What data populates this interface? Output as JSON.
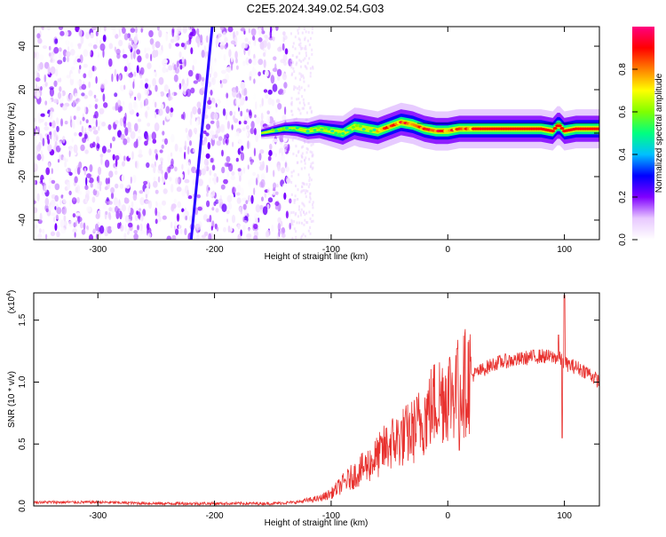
{
  "title": "C2E5.2024.349.02.54.G03",
  "chart_data": [
    {
      "type": "heatmap",
      "xlabel": "Height of straight line (km)",
      "ylabel": "Frequency (Hz)",
      "xlim": [
        -355,
        130
      ],
      "ylim": [
        -49,
        49
      ],
      "xticks": [
        -300,
        -200,
        -100,
        0,
        100
      ],
      "xtick_labels": [
        "-300",
        "-200",
        "-100",
        "0",
        "100"
      ],
      "yticks": [
        -40,
        -20,
        0,
        20,
        40
      ],
      "ytick_labels": [
        "-40",
        "-20",
        "0",
        "20",
        "40"
      ],
      "colorbar": {
        "label": "Normalized spectral amplitude",
        "range": [
          0,
          1
        ],
        "ticks": [
          0,
          0.2,
          0.4,
          0.6,
          0.8
        ],
        "tick_labels": [
          "0.0",
          "0.2",
          "0.4",
          "0.6",
          "0.8"
        ],
        "colormap": [
          "#ffffff",
          "#e8c8ff",
          "#8000ff",
          "#0000ff",
          "#00c0ff",
          "#00ff80",
          "#80ff00",
          "#ffff00",
          "#ff8000",
          "#ff0000",
          "#ff0080"
        ]
      },
      "features": {
        "noise_region_x": [
          -355,
          -135
        ],
        "signal_band_x": [
          -160,
          130
        ],
        "signal_center_frequency": [
          [
            -160,
            0
          ],
          [
            -150,
            1
          ],
          [
            -140,
            2
          ],
          [
            -130,
            2
          ],
          [
            -120,
            1
          ],
          [
            -110,
            2
          ],
          [
            -100,
            1
          ],
          [
            -90,
            0
          ],
          [
            -80,
            3
          ],
          [
            -70,
            2
          ],
          [
            -60,
            1
          ],
          [
            -50,
            3
          ],
          [
            -40,
            5
          ],
          [
            -30,
            4
          ],
          [
            -20,
            2
          ],
          [
            -10,
            1
          ],
          [
            0,
            1
          ],
          [
            10,
            2
          ],
          [
            30,
            2
          ],
          [
            50,
            2
          ],
          [
            80,
            2
          ],
          [
            90,
            1
          ],
          [
            95,
            4
          ],
          [
            100,
            1
          ],
          [
            110,
            2
          ],
          [
            130,
            2
          ]
        ],
        "streak_line": [
          [
            -220,
            -49
          ],
          [
            -202,
            49
          ]
        ]
      }
    },
    {
      "type": "line",
      "xlabel": "Height of straight line (km)",
      "ylabel": "SNR (10 * v/v)",
      "y_multiplier": "(x10",
      "y_multiplier_exp": "4",
      "y_multiplier_close": ")",
      "xlim": [
        -355,
        130
      ],
      "ylim": [
        0,
        1.72
      ],
      "xticks": [
        -300,
        -200,
        -100,
        0,
        100
      ],
      "xtick_labels": [
        "-300",
        "-200",
        "-100",
        "0",
        "100"
      ],
      "yticks": [
        0,
        0.5,
        1.0,
        1.5
      ],
      "ytick_labels": [
        "0.0",
        "0.5",
        "1.0",
        "1.5"
      ],
      "color": "#e8322f",
      "envelope": [
        [
          -355,
          0.03
        ],
        [
          -300,
          0.03
        ],
        [
          -250,
          0.02
        ],
        [
          -200,
          0.02
        ],
        [
          -150,
          0.02
        ],
        [
          -130,
          0.03
        ],
        [
          -110,
          0.06
        ],
        [
          -100,
          0.1
        ],
        [
          -90,
          0.18
        ],
        [
          -80,
          0.25
        ],
        [
          -70,
          0.32
        ],
        [
          -60,
          0.4
        ],
        [
          -50,
          0.5
        ],
        [
          -40,
          0.55
        ],
        [
          -30,
          0.6
        ],
        [
          -20,
          0.72
        ],
        [
          -10,
          0.85
        ],
        [
          0,
          0.92
        ],
        [
          10,
          0.95
        ],
        [
          20,
          1.05
        ],
        [
          30,
          1.1
        ],
        [
          40,
          1.15
        ],
        [
          50,
          1.17
        ],
        [
          60,
          1.18
        ],
        [
          70,
          1.2
        ],
        [
          80,
          1.21
        ],
        [
          90,
          1.2
        ],
        [
          95,
          1.2
        ],
        [
          100,
          1.15
        ],
        [
          110,
          1.12
        ],
        [
          120,
          1.08
        ],
        [
          130,
          1.0
        ]
      ],
      "spikes": [
        [
          8,
          1.27
        ],
        [
          10,
          0.45
        ],
        [
          95,
          1.38
        ],
        [
          98,
          0.55
        ],
        [
          100,
          1.7
        ]
      ]
    }
  ]
}
